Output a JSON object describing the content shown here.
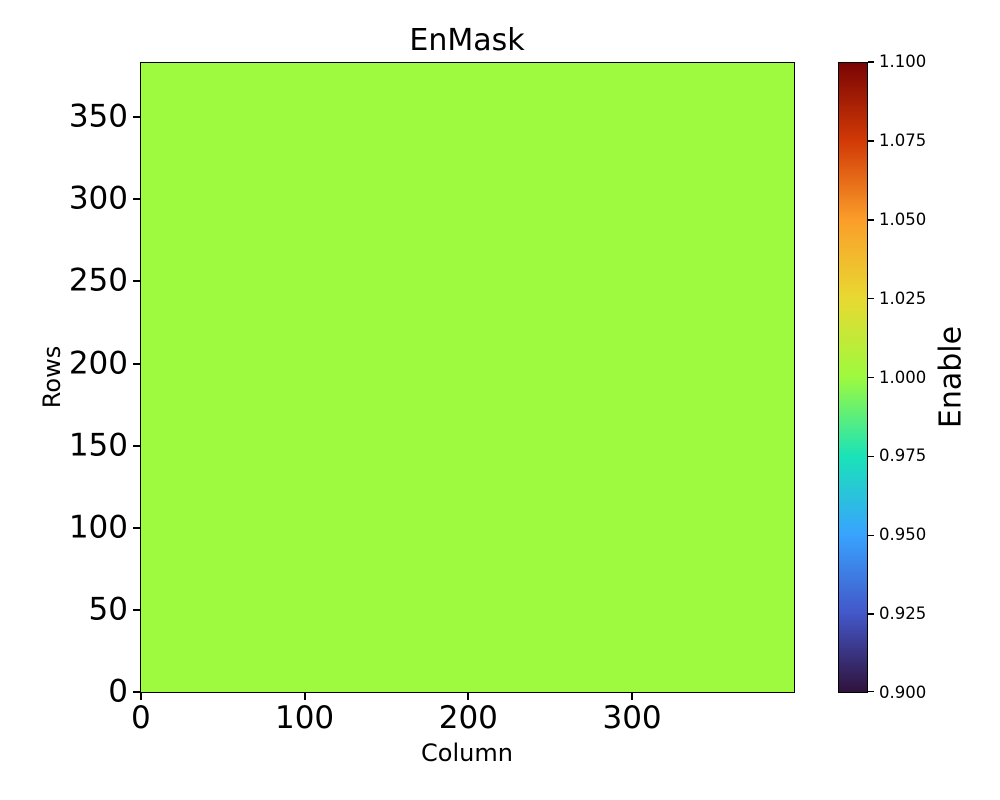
{
  "chart_data": {
    "type": "heatmap",
    "title": "EnMask",
    "xlabel": "Column",
    "ylabel": "Rows",
    "xlim": [
      -0.5,
      399.5
    ],
    "ylim": [
      -0.5,
      383.5
    ],
    "x_ticks": [
      0,
      100,
      200,
      300
    ],
    "x_tick_labels": [
      "0",
      "100",
      "200",
      "300"
    ],
    "y_ticks": [
      0,
      50,
      100,
      150,
      200,
      250,
      300,
      350
    ],
    "y_tick_labels": [
      "0",
      "50",
      "100",
      "150",
      "200",
      "250",
      "300",
      "350"
    ],
    "grid": false,
    "values": "uniform",
    "uniform_value": 1.0,
    "fill_color": "#9dfa3e",
    "colormap": "turbo",
    "colorbar": {
      "label": "Enable",
      "vmin": 0.9,
      "vmax": 1.1,
      "tick_values": [
        0.9,
        0.925,
        0.95,
        0.975,
        1.0,
        1.025,
        1.05,
        1.075,
        1.1
      ],
      "tick_labels": [
        "0.900",
        "0.925",
        "0.950",
        "0.975",
        "1.000",
        "1.025",
        "1.050",
        "1.075",
        "1.100"
      ],
      "gradient_stops": [
        {
          "pos": 0.0,
          "color": "#30123b"
        },
        {
          "pos": 0.125,
          "color": "#4357c9"
        },
        {
          "pos": 0.25,
          "color": "#38a3fe"
        },
        {
          "pos": 0.375,
          "color": "#1ae3b8"
        },
        {
          "pos": 0.5,
          "color": "#9dfa3e"
        },
        {
          "pos": 0.625,
          "color": "#e8d931"
        },
        {
          "pos": 0.75,
          "color": "#fb9e2a"
        },
        {
          "pos": 0.875,
          "color": "#d23a06"
        },
        {
          "pos": 1.0,
          "color": "#7a0403"
        }
      ]
    },
    "colors": {
      "background": "#ffffff",
      "spine": "#000000",
      "text": "#000000"
    }
  }
}
